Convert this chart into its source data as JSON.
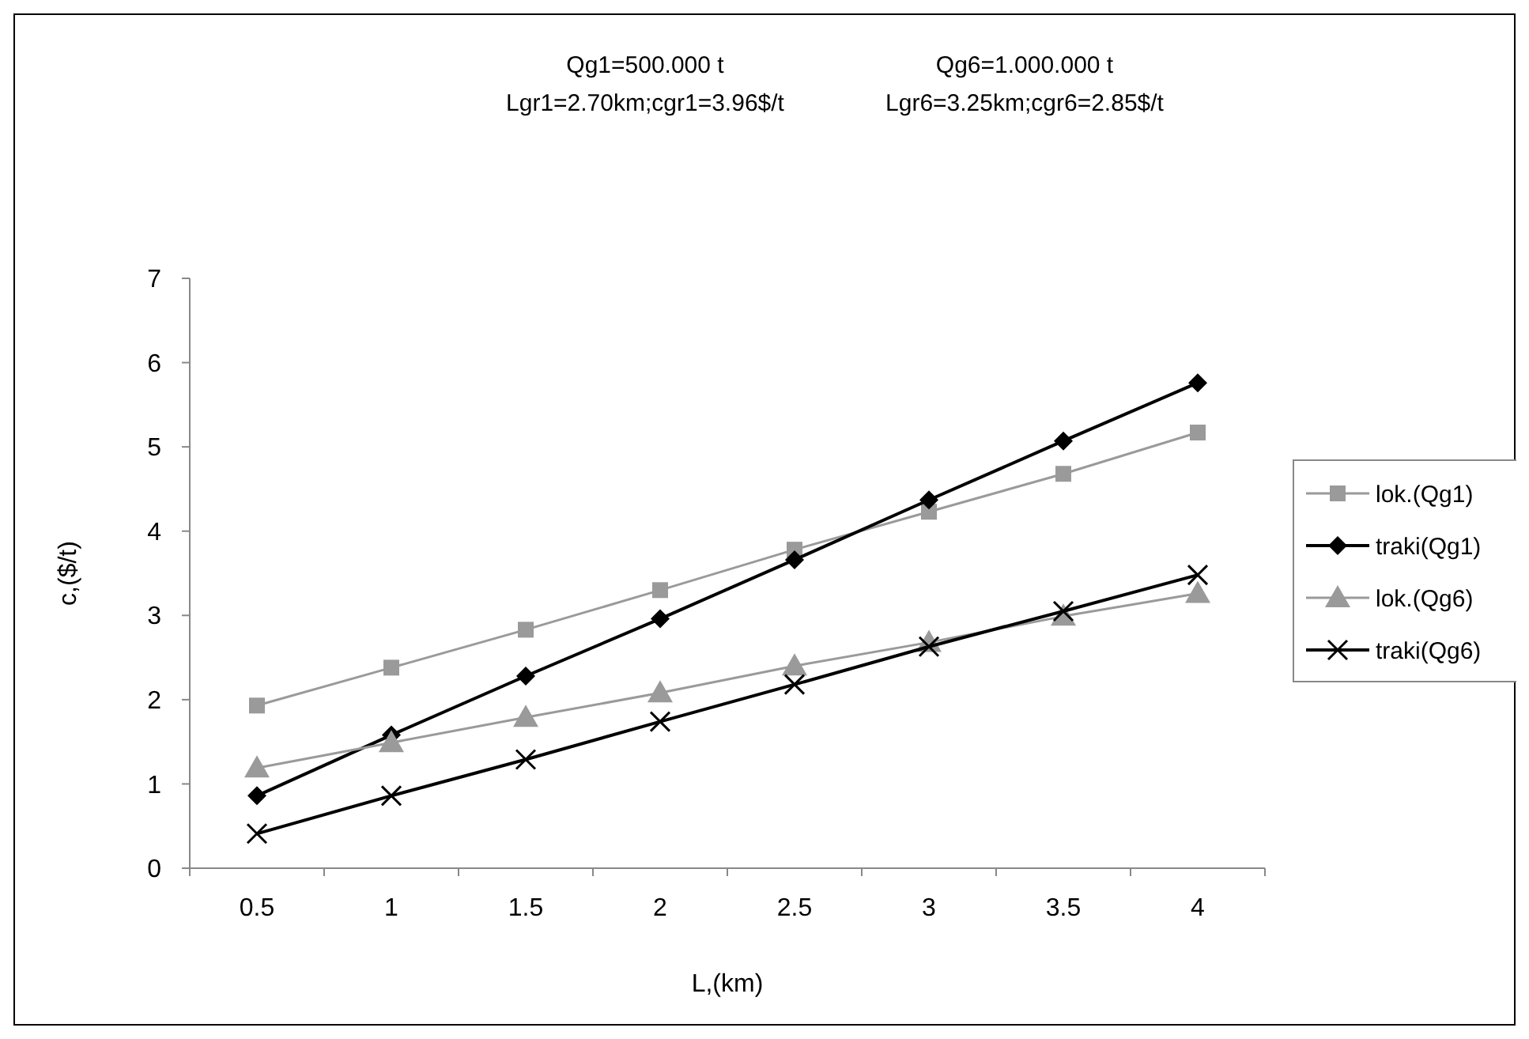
{
  "chart_data": {
    "type": "line",
    "xlabel": "L,(km)",
    "ylabel": "c,($/t)",
    "annotations": [
      "Qg1=500.000 t",
      "Lgr1=2.70km;cgr1=3.96$/t",
      "Qg6=1.000.000 t",
      "Lgr6=3.25km;cgr6=2.85$/t"
    ],
    "categories": [
      "0.5",
      "1",
      "1.5",
      "2",
      "2.5",
      "3",
      "3.5",
      "4"
    ],
    "ylim": [
      0,
      7
    ],
    "yticks": [
      0,
      1,
      2,
      3,
      4,
      5,
      6,
      7
    ],
    "grid": false,
    "legend": "right",
    "series": [
      {
        "name": "lok.(Qg1)",
        "color": "#9a9a9a",
        "marker": "square",
        "values": [
          1.93,
          2.38,
          2.83,
          3.3,
          3.78,
          4.23,
          4.68,
          5.17
        ]
      },
      {
        "name": "traki(Qg1)",
        "color": "#000000",
        "marker": "diamond",
        "values": [
          0.86,
          1.58,
          2.28,
          2.96,
          3.66,
          4.37,
          5.07,
          5.76
        ]
      },
      {
        "name": "lok.(Qg6)",
        "color": "#9a9a9a",
        "marker": "triangle",
        "values": [
          1.19,
          1.49,
          1.79,
          2.08,
          2.4,
          2.68,
          2.99,
          3.26
        ]
      },
      {
        "name": "traki(Qg6)",
        "color": "#000000",
        "marker": "cross",
        "values": [
          0.41,
          0.86,
          1.29,
          1.74,
          2.18,
          2.63,
          3.05,
          3.48
        ]
      }
    ]
  }
}
